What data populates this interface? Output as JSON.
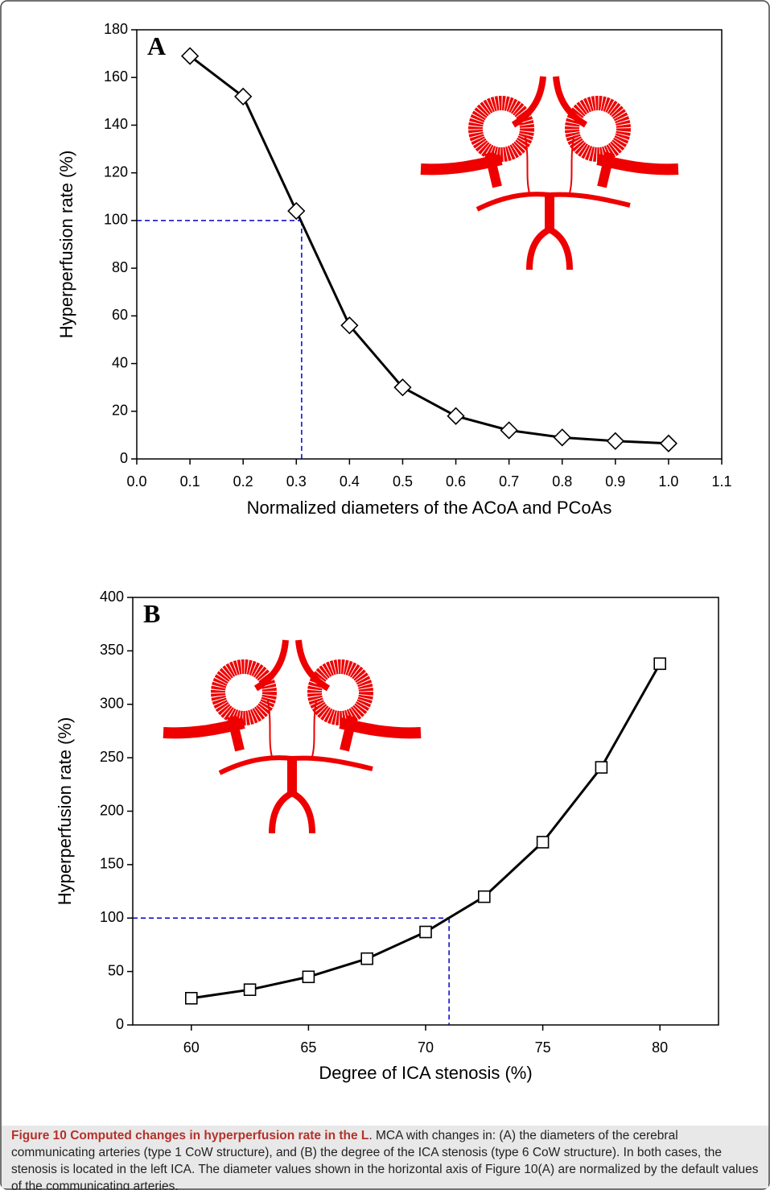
{
  "chart_data": [
    {
      "type": "line",
      "panel": "A",
      "x": [
        0.1,
        0.2,
        0.3,
        0.4,
        0.5,
        0.6,
        0.7,
        0.8,
        0.9,
        1.0
      ],
      "values": [
        169,
        152,
        104,
        56,
        30,
        18,
        12,
        9,
        7.5,
        6.5
      ],
      "color": "#000000",
      "marker": "diamond",
      "xlabel": "Normalized diameters of the ACoA and PCoAs",
      "ylabel": "Hyperperfusion rate (%)",
      "xlim": [
        0,
        1.1
      ],
      "xticks": [
        {
          "value": 0,
          "label": "0.0"
        },
        0.1,
        0.2,
        0.3,
        0.4,
        0.5,
        0.6,
        0.7,
        0.8,
        0.9,
        {
          "value": 1,
          "label": "1.0"
        },
        1.1
      ],
      "ylim": [
        0,
        180
      ],
      "yticks": [
        0,
        20,
        40,
        60,
        80,
        100,
        120,
        140,
        160,
        180
      ],
      "guide": {
        "x": 0.31,
        "y": 100,
        "color": "#0000cc"
      }
    },
    {
      "type": "line",
      "panel": "B",
      "x": [
        60,
        62.5,
        65,
        67.5,
        70,
        72.5,
        75,
        77.5,
        80
      ],
      "values": [
        25,
        33,
        45,
        62,
        87,
        120,
        171,
        241,
        338
      ],
      "color": "#000000",
      "marker": "square",
      "xlabel": "Degree of ICA stenosis (%)",
      "ylabel": "Hyperperfusion rate (%)",
      "xlim": [
        57.5,
        82.5
      ],
      "xticks": [
        60,
        65,
        70,
        75,
        80
      ],
      "ylim": [
        0,
        400
      ],
      "yticks": [
        0,
        50,
        100,
        150,
        200,
        250,
        300,
        350,
        400
      ],
      "guide": {
        "x": 71,
        "y": 100,
        "color": "#0000cc"
      }
    }
  ],
  "caption": {
    "title": "Figure 10 Computed changes in hyperperfusion rate in the L",
    "text": ". MCA with changes in: (A) the diameters of the cerebral communicating arteries (type 1 CoW structure), and (B) the degree of the ICA stenosis (type 6 CoW structure). In both cases, the stenosis is located in the left ICA. The diameter values shown in the horizontal axis of Figure 10(A) are normalized by the default values of the communicating arteries."
  }
}
